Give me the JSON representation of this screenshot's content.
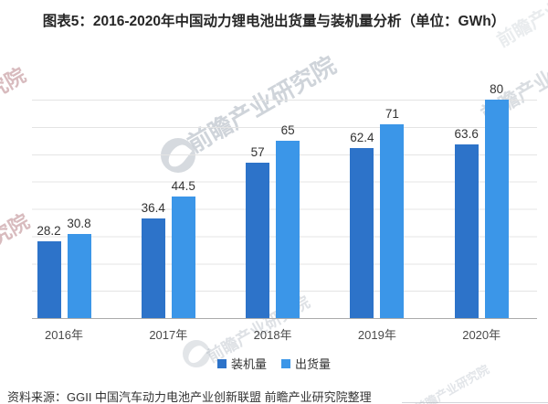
{
  "title": "图表5：2016-2020年中国动力锂电池出货量与装机量分析（单位：GWh）",
  "chart_data": {
    "type": "bar",
    "title": "图表5：2016-2020年中国动力锂电池出货量与装机量分析（单位：GWh）",
    "categories": [
      "2016年",
      "2017年",
      "2018年",
      "2019年",
      "2020年"
    ],
    "series": [
      {
        "name": "装机量",
        "color": "#2d73c9",
        "values": [
          28.2,
          36.4,
          57,
          62.4,
          63.6
        ]
      },
      {
        "name": "出货量",
        "color": "#3b96e8",
        "values": [
          30.8,
          44.5,
          65,
          71,
          80
        ]
      }
    ],
    "xlabel": "",
    "ylabel": "",
    "ylim": [
      0,
      80
    ],
    "grid": true,
    "grid_interval": 10,
    "legend_position": "bottom",
    "value_labels": true
  },
  "source": "资料来源：GGII 中国汽车动力电池产业创新联盟 前瞻产业研究院整理",
  "watermark": {
    "text": "前瞻产业研究院"
  }
}
